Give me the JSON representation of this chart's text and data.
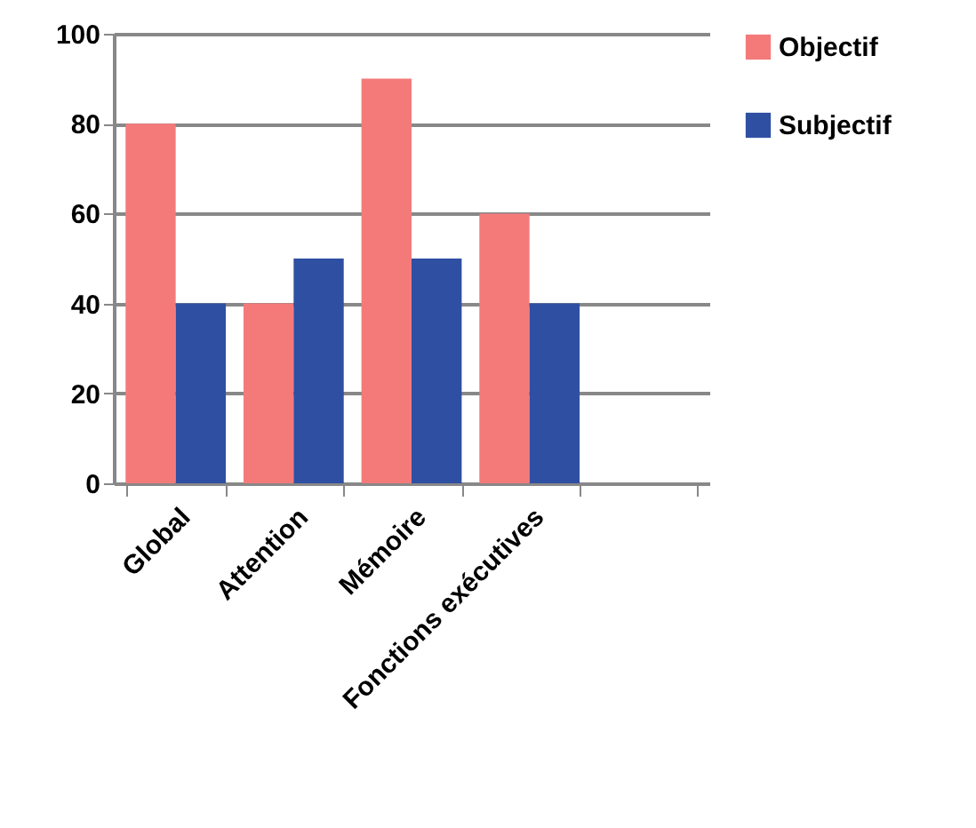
{
  "chart_data": {
    "type": "bar",
    "categories": [
      "Global",
      "Attention",
      "Mémoire",
      "Fonctions exécutives",
      null
    ],
    "series": [
      {
        "name": "Objectif",
        "color": "#f47a7a",
        "values": [
          80,
          40,
          90,
          60,
          null
        ]
      },
      {
        "name": "Subjectif",
        "color": "#2f4fa2",
        "values": [
          40,
          50,
          50,
          40,
          null
        ]
      }
    ],
    "ylim": [
      0,
      100
    ],
    "yticks": [
      0,
      20,
      40,
      60,
      80,
      100
    ],
    "grid": "y",
    "legend": "right"
  }
}
